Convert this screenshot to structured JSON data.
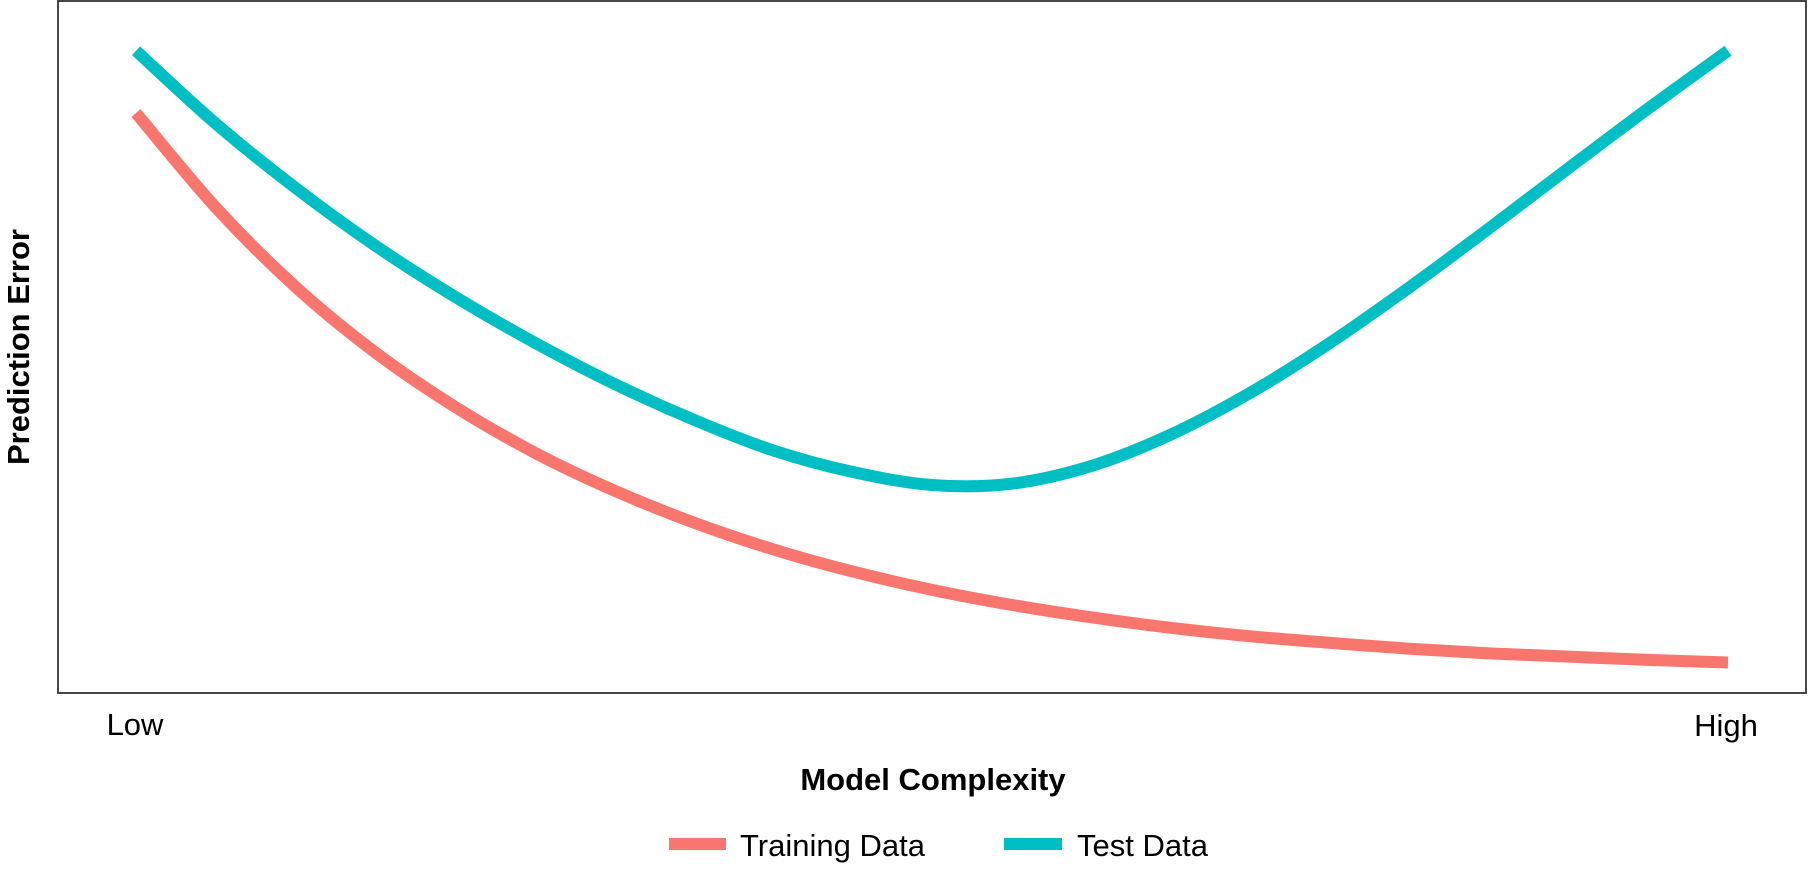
{
  "chart_data": {
    "type": "line",
    "xlabel": "Model Complexity",
    "ylabel": "Prediction Error",
    "x_tick_labels": [
      "Low",
      "High"
    ],
    "xlim": [
      0,
      1
    ],
    "ylim": [
      0,
      1
    ],
    "grid": false,
    "legend_position": "bottom",
    "series": [
      {
        "name": "Training Data",
        "color": "#F8766D",
        "x": [
          0,
          0.05,
          0.1,
          0.15,
          0.2,
          0.25,
          0.3,
          0.35,
          0.4,
          0.45,
          0.5,
          0.55,
          0.6,
          0.65,
          0.7,
          0.75,
          0.8,
          0.85,
          0.9,
          0.95,
          1
        ],
        "y": [
          0.855,
          0.711,
          0.59,
          0.49,
          0.407,
          0.337,
          0.279,
          0.23,
          0.189,
          0.155,
          0.127,
          0.104,
          0.085,
          0.069,
          0.056,
          0.046,
          0.037,
          0.03,
          0.025,
          0.02,
          0.016
        ]
      },
      {
        "name": "Test Data",
        "color": "#00BFC4",
        "x": [
          0,
          0.05,
          0.1,
          0.15,
          0.2,
          0.25,
          0.3,
          0.35,
          0.4,
          0.45,
          0.5,
          0.55,
          0.6,
          0.65,
          0.7,
          0.75,
          0.8,
          0.85,
          0.9,
          0.95,
          1
        ],
        "y": [
          0.95,
          0.839,
          0.741,
          0.653,
          0.575,
          0.505,
          0.442,
          0.387,
          0.34,
          0.307,
          0.287,
          0.289,
          0.316,
          0.364,
          0.428,
          0.504,
          0.589,
          0.679,
          0.771,
          0.862,
          0.95
        ]
      }
    ]
  }
}
